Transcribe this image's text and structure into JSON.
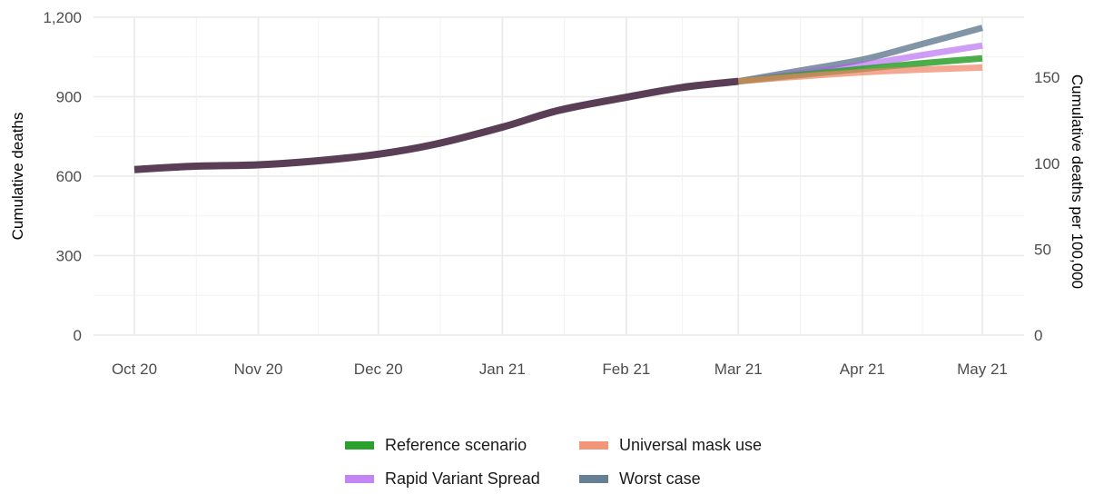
{
  "chart_data": {
    "type": "line",
    "xlabel": "",
    "ylabel": "Cumulative deaths",
    "ylabel_right": "Cumulative deaths per 100,000",
    "x_ticks": [
      "Oct 20",
      "Nov 20",
      "Dec 20",
      "Jan 21",
      "Feb 21",
      "Mar 21",
      "Apr 21",
      "May 21"
    ],
    "y_ticks": [
      "0",
      "300",
      "600",
      "900",
      "1,200"
    ],
    "y_ticks_right": [
      "0",
      "50",
      "100",
      "150"
    ],
    "ylim": [
      0,
      1200
    ],
    "ylim_right": [
      0,
      185
    ],
    "grid": true,
    "legend_position": "bottom",
    "history": {
      "x": [
        "2020-10-01",
        "2020-10-15",
        "2020-11-01",
        "2020-11-15",
        "2020-12-01",
        "2020-12-15",
        "2021-01-01",
        "2021-01-15",
        "2021-02-01",
        "2021-02-15",
        "2021-03-01"
      ],
      "values": [
        625,
        637,
        643,
        657,
        683,
        720,
        785,
        848,
        898,
        935,
        958
      ]
    },
    "series": [
      {
        "name": "Reference scenario",
        "color": "#2ca02c",
        "opacity": 0.85,
        "x": [
          "2021-03-01",
          "2021-03-15",
          "2021-04-01",
          "2021-04-15",
          "2021-05-01"
        ],
        "values": [
          958,
          980,
          1005,
          1025,
          1045
        ]
      },
      {
        "name": "Universal mask use",
        "color": "#f08262",
        "opacity": 0.7,
        "x": [
          "2021-03-01",
          "2021-03-15",
          "2021-04-01",
          "2021-04-15",
          "2021-05-01"
        ],
        "values": [
          958,
          975,
          992,
          1002,
          1010
        ]
      },
      {
        "name": "Rapid Variant Spread",
        "color": "#b05cf0",
        "opacity": 0.6,
        "x": [
          "2021-03-01",
          "2021-03-15",
          "2021-04-01",
          "2021-04-15",
          "2021-05-01"
        ],
        "values": [
          958,
          985,
          1020,
          1055,
          1093
        ]
      },
      {
        "name": "Worst case",
        "color": "#4b6882",
        "opacity": 0.7,
        "x": [
          "2021-03-01",
          "2021-03-15",
          "2021-04-01",
          "2021-04-15",
          "2021-05-01"
        ],
        "values": [
          958,
          995,
          1040,
          1095,
          1160
        ]
      }
    ],
    "history_color": "#5a3e56"
  }
}
